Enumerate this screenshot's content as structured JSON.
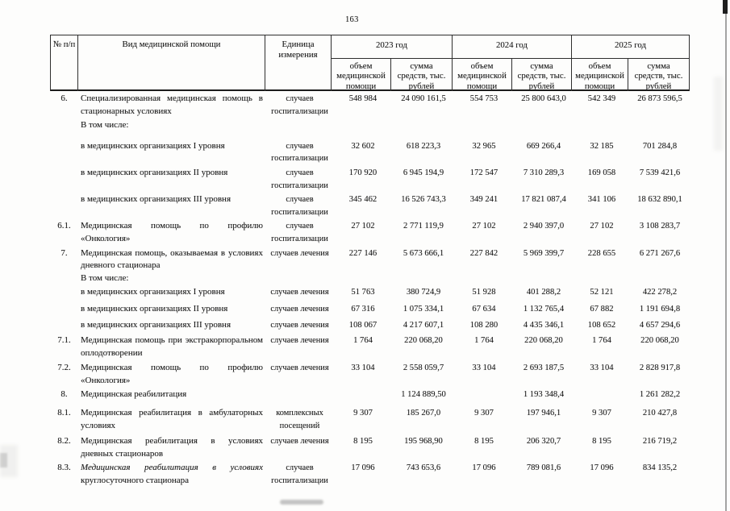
{
  "page": {
    "number": "163"
  },
  "table": {
    "columns": {
      "num": "№ п/п",
      "kind": "Вид медицинской помощи",
      "unit": "Единица измерения"
    },
    "years": [
      {
        "label": "2023 год"
      },
      {
        "label": "2024 год"
      },
      {
        "label": "2025 год"
      }
    ],
    "subheaders": {
      "volume": "объем\nмедицинской\nпомощи",
      "sum": "сумма\nсредств, тыс.\nрублей"
    },
    "rows": [
      {
        "num": "6.",
        "label": "Специализированная медицинская помощь в стационарных условиях",
        "unit": "случаев госпитализации",
        "values": [
          "548 984",
          "24 090 161,5",
          "554 753",
          "25 800 643,0",
          "542 349",
          "26 873 596,5"
        ]
      },
      {
        "num": "",
        "label": "В том числе:",
        "unit": "",
        "values": [
          "",
          "",
          "",
          "",
          "",
          ""
        ]
      },
      {
        "num": "",
        "label": "в медицинских организациях I уровня",
        "unit": "случаев госпитализации",
        "values": [
          "32 602",
          "618 223,3",
          "32 965",
          "669 266,4",
          "32 185",
          "701 284,8"
        ]
      },
      {
        "num": "",
        "label": "в медицинских организациях II уровня",
        "unit": "случаев госпитализации",
        "values": [
          "170 920",
          "6 945 194,9",
          "172 547",
          "7 310 289,3",
          "169 058",
          "7 539 421,6"
        ]
      },
      {
        "num": "",
        "label": "в медицинских организациях III уровня",
        "unit": "случаев госпитализации",
        "values": [
          "345 462",
          "16 526 743,3",
          "349 241",
          "17 821 087,4",
          "341 106",
          "18 632 890,1"
        ]
      },
      {
        "num": "6.1.",
        "label": "Медицинская помощь по профилю «Онкология»",
        "unit": "случаев госпитализации",
        "values": [
          "27 102",
          "2 771 119,9",
          "27 102",
          "2 940 397,0",
          "27 102",
          "3 108 283,7"
        ]
      },
      {
        "num": "7.",
        "label": "Медицинская помощь, оказываемая в условиях дневного стационара",
        "unit": "случаев лечения",
        "values": [
          "227 146",
          "5 673 666,1",
          "227 842",
          "5 969 399,7",
          "228 655",
          "6 271 267,6"
        ]
      },
      {
        "num": "",
        "label": "В том числе:",
        "unit": "",
        "values": [
          "",
          "",
          "",
          "",
          "",
          ""
        ]
      },
      {
        "num": "",
        "label": "в медицинских организациях I уровня",
        "unit": "случаев лечения",
        "values": [
          "51 763",
          "380 724,9",
          "51 928",
          "401 288,2",
          "52 121",
          "422 278,2"
        ]
      },
      {
        "num": "",
        "label": "в медицинских организациях II уровня",
        "unit": "случаев лечения",
        "values": [
          "67 316",
          "1 075 334,1",
          "67 634",
          "1 132 765,4",
          "67 882",
          "1 191 694,8"
        ]
      },
      {
        "num": "",
        "label": "в медицинских организациях III уровня",
        "unit": "случаев лечения",
        "values": [
          "108 067",
          "4 217 607,1",
          "108 280",
          "4 435 346,1",
          "108 652",
          "4 657 294,6"
        ]
      },
      {
        "num": "7.1.",
        "label": "Медицинская помощь при экстракорпоральном оплодотворении",
        "unit": "случаев лечения",
        "values": [
          "1 764",
          "220 068,20",
          "1 764",
          "220 068,20",
          "1 764",
          "220 068,20"
        ]
      },
      {
        "num": "7.2.",
        "label": "Медицинская помощь по профилю «Онкология»",
        "unit": "случаев лечения",
        "values": [
          "33 104",
          "2 558 059,7",
          "33 104",
          "2 693 187,5",
          "33 104",
          "2 828 917,8"
        ]
      },
      {
        "num": "8.",
        "label": "Медицинская реабилитация",
        "unit": "",
        "values": [
          "",
          "1 124 889,50",
          "",
          "1 193 348,4",
          "",
          "1 261 282,2"
        ]
      },
      {
        "num": "8.1.",
        "label": "Медицинская реабилитация в амбулаторных условиях",
        "unit": "комплексных посещений",
        "values": [
          "9 307",
          "185 267,0",
          "9 307",
          "197 946,1",
          "9 307",
          "210 427,8"
        ]
      },
      {
        "num": "8.2.",
        "label": "Медицинская реабилитация в условиях дневных стационаров",
        "unit": "случаев лечения",
        "values": [
          "8 195",
          "195 968,90",
          "8 195",
          "206 320,7",
          "8 195",
          "216 719,2"
        ]
      },
      {
        "num": "8.3.",
        "label": "Медицинская реабилитация в условиях круглосуточного стационара",
        "unit": "случаев госпитализации",
        "values": [
          "17 096",
          "743 653,6",
          "17 096",
          "789 081,6",
          "17 096",
          "834 135,2"
        ]
      }
    ]
  }
}
